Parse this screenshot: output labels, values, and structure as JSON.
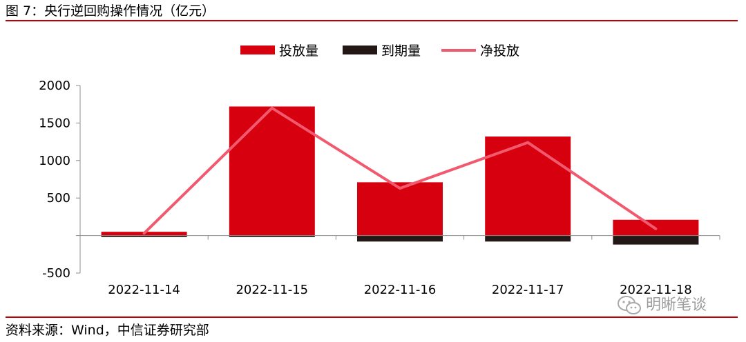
{
  "header": {
    "title": "图 7：央行逆回购操作情况（亿元）"
  },
  "footer": {
    "source": "资料来源：Wind，中信证券研究部"
  },
  "watermark": {
    "text": "明晰笔谈",
    "icon": "wechat-icon"
  },
  "colors": {
    "rule": "#c00000",
    "issuance": "#d6000f",
    "maturity": "#231815",
    "net": "#f15a6e",
    "axis": "#8c8c8c"
  },
  "chart_data": {
    "type": "bar",
    "categories": [
      "2022-11-14",
      "2022-11-15",
      "2022-11-16",
      "2022-11-17",
      "2022-11-18"
    ],
    "series": [
      {
        "name": "投放量",
        "type": "bar",
        "values": [
          50,
          1720,
          710,
          1320,
          210
        ]
      },
      {
        "name": "到期量",
        "type": "bar",
        "values": [
          -20,
          -20,
          -80,
          -80,
          -120
        ]
      },
      {
        "name": "净投放",
        "type": "line",
        "values": [
          30,
          1700,
          630,
          1240,
          90
        ]
      }
    ],
    "ylim": [
      -500,
      2000
    ],
    "yticks": [
      "-500",
      "",
      "500",
      "1000",
      "1500",
      "2000"
    ],
    "ytick_values": [
      -500,
      0,
      500,
      1000,
      1500,
      2000
    ],
    "legend": {
      "position": "top-center"
    },
    "grid": false,
    "title": "",
    "xlabel": "",
    "ylabel": ""
  }
}
